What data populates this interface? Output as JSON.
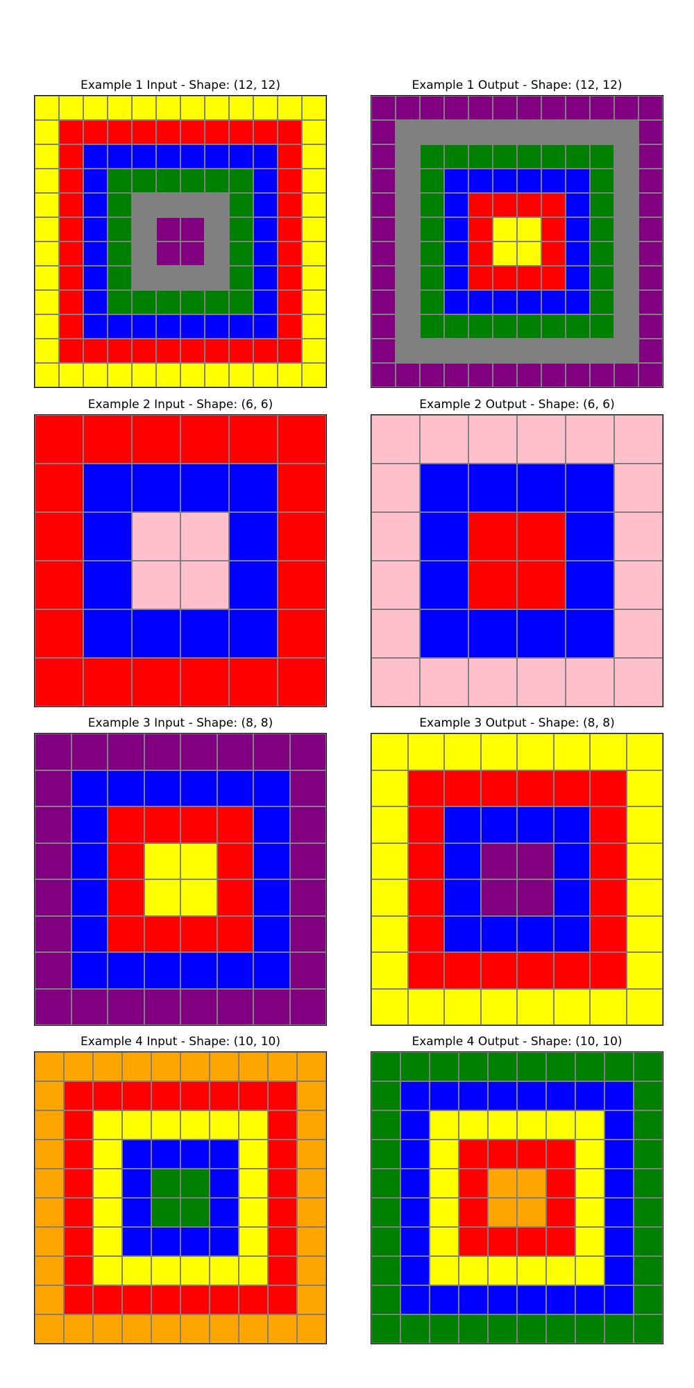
{
  "palette": {
    "Y": "#ffff00",
    "R": "#ff0000",
    "B": "#0000ff",
    "G": "#008000",
    "A": "#808080",
    "P": "#800080",
    "K": "#ffc0cb",
    "O": "#ffa500"
  },
  "examples": [
    {
      "input": {
        "title": "Example 1 Input - Shape: (12, 12)",
        "rings": [
          "Y",
          "R",
          "B",
          "G",
          "A",
          "P"
        ],
        "size": 12
      },
      "output": {
        "title": "Example 1 Output - Shape: (12, 12)",
        "rings": [
          "P",
          "A",
          "G",
          "B",
          "R",
          "Y"
        ],
        "size": 12
      }
    },
    {
      "input": {
        "title": "Example 2 Input - Shape: (6, 6)",
        "rings": [
          "R",
          "B",
          "K"
        ],
        "size": 6
      },
      "output": {
        "title": "Example 2 Output - Shape: (6, 6)",
        "rings": [
          "K",
          "B",
          "R"
        ],
        "size": 6
      }
    },
    {
      "input": {
        "title": "Example 3 Input - Shape: (8, 8)",
        "rings": [
          "P",
          "B",
          "R",
          "Y"
        ],
        "size": 8
      },
      "output": {
        "title": "Example 3 Output - Shape: (8, 8)",
        "rings": [
          "Y",
          "R",
          "B",
          "P"
        ],
        "size": 8
      }
    },
    {
      "input": {
        "title": "Example 4 Input - Shape: (10, 10)",
        "rings": [
          "O",
          "R",
          "Y",
          "B",
          "G"
        ],
        "size": 10
      },
      "output": {
        "title": "Example 4 Output - Shape: (10, 10)",
        "rings": [
          "G",
          "B",
          "Y",
          "R",
          "O"
        ],
        "size": 10
      }
    }
  ]
}
